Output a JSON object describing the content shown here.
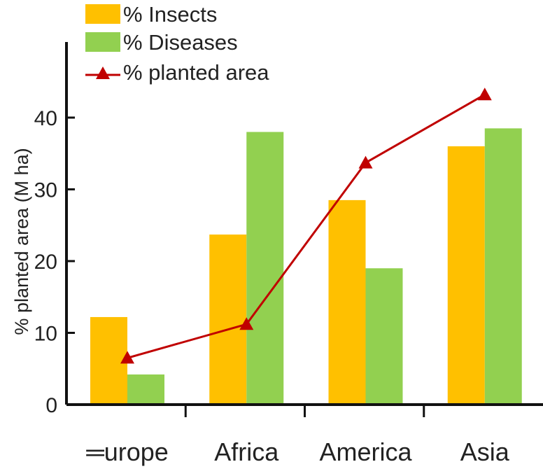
{
  "chart_data": {
    "type": "bar",
    "categories": [
      "Europe",
      "Africa",
      "America",
      "Asia"
    ],
    "category_labels_shown": [
      "═urope",
      "Africa",
      "America",
      "Asia"
    ],
    "series": [
      {
        "name": "% Insects",
        "values": [
          12.2,
          23.7,
          28.5,
          36
        ],
        "color": "#FFC000"
      },
      {
        "name": "% Diseases",
        "values": [
          4.2,
          38,
          19,
          38.5
        ],
        "color": "#92D050"
      }
    ],
    "line_series": [
      {
        "name": "% planted area",
        "values": [
          6.5,
          11.2,
          33.7,
          43.2
        ],
        "color": "#C00000",
        "marker": "triangle"
      }
    ],
    "yticks": [
      0,
      10,
      20,
      30,
      40
    ],
    "ytick_labels": [
      "0",
      "10",
      "20",
      "30",
      "40"
    ],
    "ylim": [
      0,
      43
    ],
    "ylabel": "% planted area (M ha)",
    "legend_labels": [
      "% Insects",
      "% Diseases",
      "% planted area"
    ],
    "legend_position": "top-left",
    "grid": false
  }
}
